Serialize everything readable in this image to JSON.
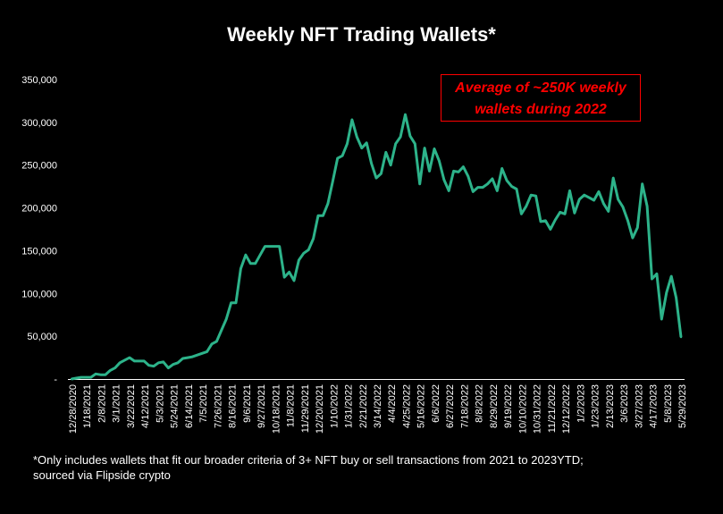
{
  "chart_data": {
    "type": "line",
    "title": "Weekly NFT Trading Wallets*",
    "xlabel": "",
    "ylabel": "",
    "ylim": [
      0,
      350000
    ],
    "yticks": [
      0,
      50000,
      100000,
      150000,
      200000,
      250000,
      300000,
      350000
    ],
    "ytick_labels": [
      "-",
      "50,000",
      "100,000",
      "150,000",
      "200,000",
      "250,000",
      "300,000",
      "350,000"
    ],
    "grid": false,
    "legend": "none",
    "color": "#2db38a",
    "x_start": "12/28/2020",
    "x_interval": "weekly",
    "xtick_every": 3,
    "xtick_labels": [
      "12/28/2020",
      "1/18/2021",
      "2/8/2021",
      "3/1/2021",
      "3/22/2021",
      "4/12/2021",
      "5/3/2021",
      "5/24/2021",
      "6/14/2021",
      "7/5/2021",
      "7/26/2021",
      "8/16/2021",
      "9/6/2021",
      "9/27/2021",
      "10/18/2021",
      "11/8/2021",
      "11/29/2021",
      "12/20/2021",
      "1/10/2022",
      "1/31/2022",
      "2/21/2022",
      "3/14/2022",
      "4/4/2022",
      "4/25/2022",
      "5/16/2022",
      "6/6/2022",
      "6/27/2022",
      "7/18/2022",
      "8/8/2022",
      "8/29/2022",
      "9/19/2022",
      "10/10/2022",
      "10/31/2022",
      "11/21/2022",
      "12/12/2022",
      "1/2/2023",
      "1/23/2023",
      "2/13/2023",
      "3/6/2023",
      "3/27/2023",
      "4/17/2023",
      "5/8/2023",
      "5/29/2023"
    ],
    "values": [
      0,
      1000,
      2000,
      2000,
      2000,
      6000,
      5000,
      5000,
      10000,
      13000,
      19000,
      22000,
      25000,
      21000,
      21000,
      21000,
      16000,
      15000,
      19000,
      20000,
      13000,
      17000,
      19000,
      24000,
      25000,
      26000,
      28000,
      30000,
      32000,
      41000,
      44000,
      57000,
      70000,
      89000,
      89000,
      129000,
      145000,
      135000,
      135000,
      145000,
      155000,
      155000,
      155000,
      155000,
      119000,
      125000,
      115000,
      139000,
      147000,
      151000,
      164000,
      191000,
      191000,
      205000,
      231000,
      258000,
      261000,
      275000,
      303000,
      283000,
      270000,
      276000,
      252000,
      235000,
      240000,
      265000,
      250000,
      275000,
      283000,
      309000,
      284000,
      275000,
      228000,
      270000,
      243000,
      269000,
      255000,
      233000,
      220000,
      243000,
      242000,
      248000,
      237000,
      219000,
      224000,
      224000,
      228000,
      234000,
      220000,
      246000,
      232000,
      225000,
      222000,
      193000,
      202000,
      215000,
      214000,
      184000,
      185000,
      175000,
      186000,
      195000,
      193000,
      220000,
      194000,
      210000,
      215000,
      212000,
      209000,
      219000,
      205000,
      196000,
      235000,
      210000,
      201000,
      185000,
      165000,
      177000,
      228000,
      202000,
      117000,
      123000,
      70000,
      101000,
      120000,
      95000,
      49000
    ],
    "annotation": [
      "Average of ~250K weekly",
      "wallets during 2022"
    ],
    "annotation_color": "#ff0000"
  },
  "footnote": [
    "*Only includes wallets that fit our broader criteria of 3+ NFT buy or sell transactions from 2021 to 2023YTD;",
    "sourced via Flipside crypto"
  ]
}
